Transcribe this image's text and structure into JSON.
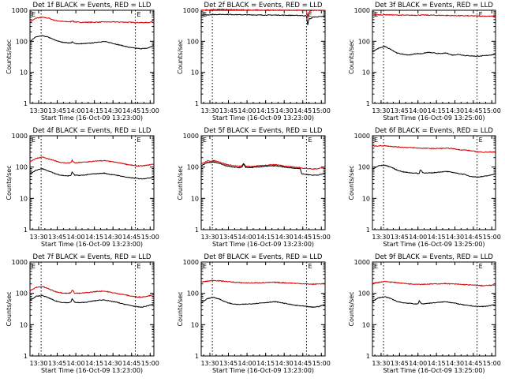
{
  "colors": {
    "events": "#000000",
    "lld": "#d40000",
    "frame": "#000000"
  },
  "common": {
    "ylabel": "Counts/sec",
    "xlabel": "Start Time (16-Oct-09 13:23:00)",
    "xticks": [
      "13:30",
      "13:45",
      "14:00",
      "14:15",
      "14:30",
      "14:45",
      "15:00"
    ],
    "yticks": [
      "1",
      "10",
      "100",
      "1000"
    ],
    "marker_label": "E"
  },
  "chart_data": [
    {
      "type": "line",
      "title": "Det 1f BLACK = Events, RED = LLD",
      "ylabel": "Counts/sec",
      "xlabel": "Start Time (16-Oct-09 13:23:00)",
      "xlim_min": [
        0,
        100
      ],
      "ylim": [
        1,
        1000
      ],
      "yscale": "log",
      "markers_min": [
        9,
        85
      ],
      "series": [
        {
          "name": "Events",
          "color": "black",
          "x": [
            0,
            5,
            10,
            15,
            20,
            25,
            30,
            33,
            34,
            36,
            40,
            45,
            50,
            55,
            60,
            65,
            70,
            75,
            80,
            85,
            90,
            95,
            98,
            100
          ],
          "values": [
            100,
            140,
            150,
            135,
            110,
            95,
            90,
            88,
            96,
            85,
            83,
            85,
            88,
            95,
            98,
            90,
            80,
            72,
            64,
            60,
            58,
            60,
            68,
            73
          ]
        },
        {
          "name": "LLD",
          "color": "red",
          "x": [
            0,
            5,
            10,
            15,
            20,
            25,
            30,
            33,
            34,
            36,
            40,
            50,
            60,
            70,
            80,
            90,
            95,
            98,
            100
          ],
          "values": [
            420,
            560,
            590,
            560,
            470,
            440,
            430,
            425,
            460,
            420,
            410,
            410,
            420,
            420,
            410,
            400,
            400,
            420,
            510
          ]
        }
      ]
    },
    {
      "type": "line",
      "title": "Det 2f BLACK = Events, RED = LLD",
      "ylabel": "Counts/sec",
      "xlabel": "Start Time (16-Oct-09 13:23:00)",
      "xlim_min": [
        0,
        100
      ],
      "ylim": [
        1,
        1000
      ],
      "yscale": "log",
      "markers_min": [
        9,
        85
      ],
      "series": [
        {
          "name": "Events",
          "color": "black",
          "x": [
            0,
            10,
            20,
            30,
            40,
            50,
            60,
            70,
            80,
            85,
            86,
            87,
            88,
            90,
            95,
            100
          ],
          "values": [
            690,
            730,
            735,
            720,
            710,
            700,
            700,
            690,
            680,
            660,
            330,
            560,
            520,
            600,
            620,
            640
          ]
        },
        {
          "name": "LLD",
          "color": "red",
          "x": [
            0,
            10,
            20,
            30,
            40,
            50,
            60,
            70,
            80,
            85,
            86,
            87,
            88,
            90,
            100
          ],
          "values": [
            1010,
            1060,
            1050,
            1030,
            1020,
            1010,
            1010,
            1000,
            1000,
            990,
            560,
            880,
            950,
            980,
            990
          ]
        }
      ]
    },
    {
      "type": "line",
      "title": "Det 3f BLACK = Events, RED = LLD",
      "ylabel": "Counts/sec",
      "xlabel": "Start Time (16-Oct-09 13:25:00)",
      "xlim_min": [
        0,
        100
      ],
      "ylim": [
        1,
        1000
      ],
      "yscale": "log",
      "markers_min": [
        9,
        85
      ],
      "series": [
        {
          "name": "Events",
          "color": "black",
          "x": [
            0,
            5,
            10,
            15,
            20,
            25,
            30,
            35,
            40,
            45,
            50,
            55,
            60,
            65,
            70,
            75,
            80,
            85,
            90,
            95,
            100
          ],
          "values": [
            45,
            60,
            68,
            55,
            42,
            38,
            36,
            40,
            40,
            44,
            42,
            40,
            42,
            36,
            38,
            35,
            34,
            33,
            34,
            36,
            38
          ]
        },
        {
          "name": "LLD",
          "color": "red",
          "x": [
            0,
            10,
            20,
            30,
            40,
            50,
            60,
            70,
            80,
            90,
            100
          ],
          "values": [
            700,
            720,
            700,
            690,
            700,
            690,
            680,
            670,
            660,
            650,
            640
          ]
        }
      ]
    },
    {
      "type": "line",
      "title": "Det 4f BLACK = Events, RED = LLD",
      "ylabel": "Counts/sec",
      "xlabel": "Start Time (16-Oct-09 13:23:00)",
      "xlim_min": [
        0,
        100
      ],
      "ylim": [
        1,
        1000
      ],
      "yscale": "log",
      "markers_min": [
        9,
        85
      ],
      "series": [
        {
          "name": "Events",
          "color": "black",
          "x": [
            0,
            5,
            10,
            15,
            20,
            25,
            30,
            33,
            34,
            36,
            40,
            45,
            50,
            55,
            60,
            65,
            70,
            75,
            80,
            85,
            90,
            95,
            100
          ],
          "values": [
            60,
            80,
            88,
            75,
            62,
            55,
            52,
            54,
            70,
            55,
            54,
            56,
            60,
            62,
            64,
            58,
            55,
            50,
            46,
            44,
            42,
            44,
            48
          ]
        },
        {
          "name": "LLD",
          "color": "red",
          "x": [
            0,
            5,
            10,
            15,
            20,
            25,
            30,
            33,
            34,
            36,
            40,
            45,
            50,
            55,
            60,
            65,
            70,
            75,
            80,
            85,
            90,
            95,
            100
          ],
          "values": [
            150,
            190,
            210,
            180,
            160,
            140,
            135,
            138,
            165,
            135,
            140,
            145,
            150,
            158,
            160,
            150,
            140,
            130,
            118,
            110,
            108,
            115,
            125
          ]
        }
      ]
    },
    {
      "type": "line",
      "title": "Det 5f BLACK = Events, RED = LLD",
      "ylabel": "Counts/sec",
      "xlabel": "Start Time (16-Oct-09 13:23:00)",
      "xlim_min": [
        0,
        100
      ],
      "ylim": [
        1,
        1000
      ],
      "yscale": "log",
      "markers_min": [
        9,
        85
      ],
      "series": [
        {
          "name": "Events",
          "color": "black",
          "x": [
            0,
            5,
            10,
            15,
            20,
            25,
            30,
            33,
            34,
            36,
            40,
            45,
            50,
            55,
            60,
            65,
            70,
            75,
            80,
            81,
            82,
            85,
            90,
            95,
            100
          ],
          "values": [
            110,
            140,
            145,
            130,
            110,
            100,
            96,
            98,
            125,
            98,
            96,
            100,
            104,
            108,
            110,
            102,
            96,
            92,
            90,
            62,
            60,
            58,
            55,
            56,
            64
          ]
        },
        {
          "name": "LLD",
          "color": "red",
          "x": [
            0,
            5,
            10,
            15,
            20,
            25,
            30,
            33,
            34,
            36,
            40,
            45,
            50,
            55,
            60,
            65,
            70,
            75,
            80,
            85,
            90,
            95,
            100
          ],
          "values": [
            125,
            155,
            160,
            145,
            122,
            112,
            106,
            108,
            130,
            106,
            104,
            108,
            112,
            118,
            120,
            112,
            106,
            100,
            95,
            90,
            86,
            90,
            100
          ]
        }
      ]
    },
    {
      "type": "line",
      "title": "Det 6f BLACK = Events, RED = LLD",
      "ylabel": "Counts/sec",
      "xlabel": "Start Time (16-Oct-09 13:25:00)",
      "xlim_min": [
        0,
        100
      ],
      "ylim": [
        1,
        1000
      ],
      "yscale": "log",
      "markers_min": [
        9,
        85
      ],
      "series": [
        {
          "name": "Events",
          "color": "black",
          "x": [
            0,
            5,
            10,
            15,
            20,
            25,
            30,
            35,
            38,
            39,
            41,
            45,
            50,
            55,
            60,
            65,
            70,
            75,
            80,
            85,
            90,
            95,
            100
          ],
          "values": [
            85,
            110,
            115,
            100,
            80,
            70,
            66,
            64,
            62,
            84,
            66,
            64,
            66,
            70,
            72,
            68,
            62,
            58,
            50,
            48,
            50,
            54,
            62
          ]
        },
        {
          "name": "LLD",
          "color": "red",
          "x": [
            0,
            10,
            20,
            30,
            40,
            50,
            60,
            65,
            70,
            75,
            80,
            85,
            90,
            95,
            100
          ],
          "values": [
            470,
            480,
            440,
            420,
            400,
            390,
            400,
            390,
            360,
            350,
            330,
            310,
            300,
            300,
            310
          ]
        }
      ]
    },
    {
      "type": "line",
      "title": "Det 7f BLACK = Events, RED = LLD",
      "ylabel": "Counts/sec",
      "xlabel": "Start Time (16-Oct-09 13:23:00)",
      "xlim_min": [
        0,
        100
      ],
      "ylim": [
        1,
        1000
      ],
      "yscale": "log",
      "markers_min": [
        9,
        85
      ],
      "series": [
        {
          "name": "Events",
          "color": "black",
          "x": [
            0,
            5,
            10,
            15,
            20,
            25,
            30,
            33,
            34,
            36,
            40,
            45,
            50,
            55,
            60,
            65,
            70,
            75,
            80,
            85,
            90,
            95,
            100
          ],
          "values": [
            60,
            80,
            85,
            72,
            58,
            52,
            50,
            52,
            68,
            52,
            50,
            52,
            56,
            60,
            62,
            56,
            52,
            46,
            42,
            38,
            36,
            40,
            46
          ]
        },
        {
          "name": "LLD",
          "color": "red",
          "x": [
            0,
            5,
            10,
            15,
            20,
            25,
            30,
            33,
            34,
            36,
            40,
            45,
            50,
            55,
            60,
            65,
            70,
            75,
            80,
            85,
            90,
            95,
            100
          ],
          "values": [
            120,
            155,
            165,
            140,
            115,
            105,
            100,
            104,
            130,
            102,
            100,
            104,
            110,
            116,
            118,
            108,
            100,
            92,
            84,
            78,
            76,
            82,
            92
          ]
        }
      ]
    },
    {
      "type": "line",
      "title": "Det 8f BLACK = Events, RED = LLD",
      "ylabel": "Counts/sec",
      "xlabel": "Start Time (16-Oct-09 13:23:00)",
      "xlim_min": [
        0,
        100
      ],
      "ylim": [
        1,
        1000
      ],
      "yscale": "log",
      "markers_min": [
        9,
        85
      ],
      "series": [
        {
          "name": "Events",
          "color": "black",
          "x": [
            0,
            5,
            10,
            15,
            20,
            25,
            30,
            35,
            40,
            45,
            50,
            55,
            60,
            65,
            70,
            75,
            80,
            85,
            90,
            95,
            100
          ],
          "values": [
            50,
            68,
            75,
            65,
            52,
            46,
            44,
            45,
            46,
            48,
            50,
            52,
            54,
            50,
            46,
            42,
            40,
            38,
            36,
            38,
            44
          ]
        },
        {
          "name": "LLD",
          "color": "red",
          "x": [
            0,
            10,
            20,
            30,
            40,
            50,
            60,
            70,
            80,
            90,
            100
          ],
          "values": [
            230,
            260,
            240,
            220,
            215,
            220,
            225,
            215,
            205,
            195,
            205
          ]
        }
      ]
    },
    {
      "type": "line",
      "title": "Det 9f BLACK = Events, RED = LLD",
      "ylabel": "Counts/sec",
      "xlabel": "Start Time (16-Oct-09 13:25:00)",
      "xlim_min": [
        0,
        100
      ],
      "ylim": [
        1,
        1000
      ],
      "yscale": "log",
      "markers_min": [
        9,
        85
      ],
      "series": [
        {
          "name": "Events",
          "color": "black",
          "x": [
            0,
            5,
            10,
            15,
            20,
            25,
            30,
            35,
            37,
            38,
            40,
            45,
            50,
            55,
            60,
            65,
            70,
            75,
            80,
            85,
            90,
            95,
            100
          ],
          "values": [
            55,
            72,
            78,
            68,
            55,
            50,
            48,
            46,
            45,
            58,
            46,
            48,
            50,
            52,
            54,
            50,
            46,
            42,
            40,
            38,
            38,
            40,
            44
          ]
        },
        {
          "name": "LLD",
          "color": "red",
          "x": [
            0,
            10,
            20,
            30,
            40,
            50,
            60,
            70,
            80,
            90,
            100
          ],
          "values": [
            210,
            240,
            220,
            200,
            195,
            200,
            205,
            195,
            185,
            175,
            185
          ]
        }
      ]
    }
  ]
}
